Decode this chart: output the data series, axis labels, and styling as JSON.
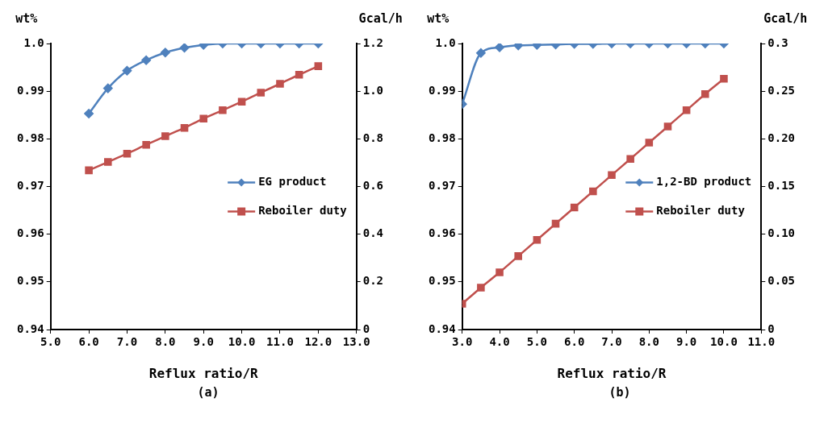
{
  "chart_data": [
    {
      "type": "line",
      "xlabel": "Reflux ratio/R",
      "ylabel": "wt%",
      "y2label": "Gcal/h",
      "annotations": [
        "(a)"
      ],
      "legend": "right",
      "grid": false,
      "x": [
        6,
        6.5,
        7,
        7.5,
        8,
        8.5,
        9,
        9.5,
        10,
        10.5,
        11,
        11.5,
        12
      ],
      "series": [
        {
          "name": "EG product",
          "color": "#4f81bd",
          "marker": "diamond",
          "values": [
            0.9853,
            0.9906,
            0.9943,
            0.9965,
            0.9981,
            0.9991,
            0.9997,
            1.0,
            1.0,
            1.0,
            1.0,
            1.0,
            1.0
          ]
        },
        {
          "name": "Reboiler duty",
          "color": "#c0504d",
          "marker": "square",
          "axis": "y2",
          "values": [
            0.668,
            0.703,
            0.738,
            0.775,
            0.811,
            0.846,
            0.885,
            0.92,
            0.956,
            0.994,
            1.031,
            1.069,
            1.105
          ]
        }
      ],
      "xlim": [
        5,
        13
      ],
      "xticks": [
        {
          "value": 5,
          "label": "5.0"
        },
        {
          "value": 6,
          "label": "6.0"
        },
        {
          "value": 7,
          "label": "7.0"
        },
        {
          "value": 8,
          "label": "8.0"
        },
        {
          "value": 9,
          "label": "9.0"
        },
        {
          "value": 10,
          "label": "10.0"
        },
        {
          "value": 11,
          "label": "11.0"
        },
        {
          "value": 12,
          "label": "12.0"
        },
        {
          "value": 13,
          "label": "13.0"
        }
      ],
      "ylim": [
        0.94,
        1.0
      ],
      "yticks": [
        0.94,
        0.95,
        0.96,
        0.97,
        0.98,
        0.99,
        {
          "value": 1.0,
          "label": "1.0"
        }
      ],
      "y2lim": [
        0,
        1.2
      ],
      "y2ticks": [
        0,
        {
          "value": 0.2,
          "label": "0.2"
        },
        {
          "value": 0.4,
          "label": "0.4"
        },
        {
          "value": 0.6,
          "label": "0.6"
        },
        {
          "value": 0.8,
          "label": "0.8"
        },
        {
          "value": 1.0,
          "label": "1.0"
        },
        {
          "value": 1.2,
          "label": "1.2"
        }
      ]
    },
    {
      "type": "line",
      "xlabel": "Reflux ratio/R",
      "ylabel": "wt%",
      "y2label": "Gcal/h",
      "annotations": [
        "(b)"
      ],
      "legend": "right",
      "grid": false,
      "x": [
        3,
        3.5,
        4,
        4.5,
        5,
        5.5,
        6,
        6.5,
        7,
        7.5,
        8,
        8.5,
        9,
        9.5,
        10
      ],
      "series": [
        {
          "name": "1,2-BD product",
          "color": "#4f81bd",
          "marker": "diamond",
          "values": [
            0.9873,
            0.998,
            0.9992,
            0.9996,
            0.9997,
            0.9998,
            0.9999,
            0.9999,
            1.0,
            1.0,
            1.0,
            1.0,
            1.0,
            1.0,
            1.0
          ]
        },
        {
          "name": "Reboiler duty",
          "color": "#c0504d",
          "marker": "square",
          "axis": "y2",
          "values": [
            0.027,
            0.044,
            0.06,
            0.077,
            0.094,
            0.111,
            0.128,
            0.145,
            0.162,
            0.179,
            0.196,
            0.213,
            0.23,
            0.247,
            0.263
          ]
        }
      ],
      "xlim": [
        3,
        11
      ],
      "xticks": [
        {
          "value": 3,
          "label": "3.0"
        },
        {
          "value": 4,
          "label": "4.0"
        },
        {
          "value": 5,
          "label": "5.0"
        },
        {
          "value": 6,
          "label": "6.0"
        },
        {
          "value": 7,
          "label": "7.0"
        },
        {
          "value": 8,
          "label": "8.0"
        },
        {
          "value": 9,
          "label": "9.0"
        },
        {
          "value": 10,
          "label": "10.0"
        },
        {
          "value": 11,
          "label": "11.0"
        }
      ],
      "ylim": [
        0.94,
        1.0
      ],
      "yticks": [
        0.94,
        0.95,
        0.96,
        0.97,
        0.98,
        0.99,
        {
          "value": 1.0,
          "label": "1.0"
        }
      ],
      "y2lim": [
        0,
        0.3
      ],
      "y2ticks": [
        0,
        0.05,
        {
          "value": 0.1,
          "label": "0.10"
        },
        0.15,
        {
          "value": 0.2,
          "label": "0.20"
        },
        0.25,
        0.3
      ]
    }
  ]
}
